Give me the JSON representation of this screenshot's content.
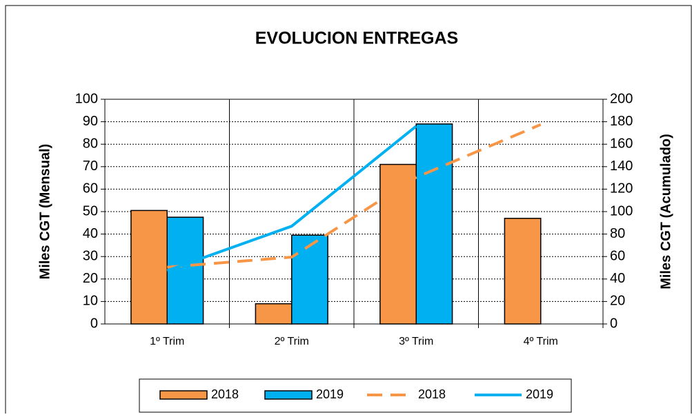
{
  "chart_data": {
    "type": "bar",
    "title": "EVOLUCION ENTREGAS",
    "categories": [
      "1º Trim",
      "2º Trim",
      "3º Trim",
      "4º Trim"
    ],
    "ylabel": "Miles CGT (Mensual)",
    "y2label": "Miles CGT (Acumulado)",
    "ylim": [
      0,
      100
    ],
    "yticks": [
      0,
      10,
      20,
      30,
      40,
      50,
      60,
      70,
      80,
      90,
      100
    ],
    "y2lim": [
      0,
      200
    ],
    "y2ticks": [
      0,
      20,
      40,
      60,
      80,
      100,
      120,
      140,
      160,
      180,
      200
    ],
    "grid": true,
    "legend": "bottom",
    "series": [
      {
        "name": "2018",
        "type": "bar",
        "color": "#f79646",
        "values": [
          50.5,
          9,
          71,
          47
        ]
      },
      {
        "name": "2019",
        "type": "bar",
        "color": "#00b0f0",
        "values": [
          47.5,
          39.5,
          89,
          null
        ]
      },
      {
        "name": "2018",
        "type": "line",
        "dashed": true,
        "axis": "y2",
        "color": "#f79646",
        "values": [
          50.5,
          59.5,
          130.5,
          177.5
        ]
      },
      {
        "name": "2019",
        "type": "line",
        "dashed": false,
        "axis": "y2",
        "color": "#00b0f0",
        "values": [
          47.5,
          87,
          176,
          null
        ]
      }
    ]
  }
}
